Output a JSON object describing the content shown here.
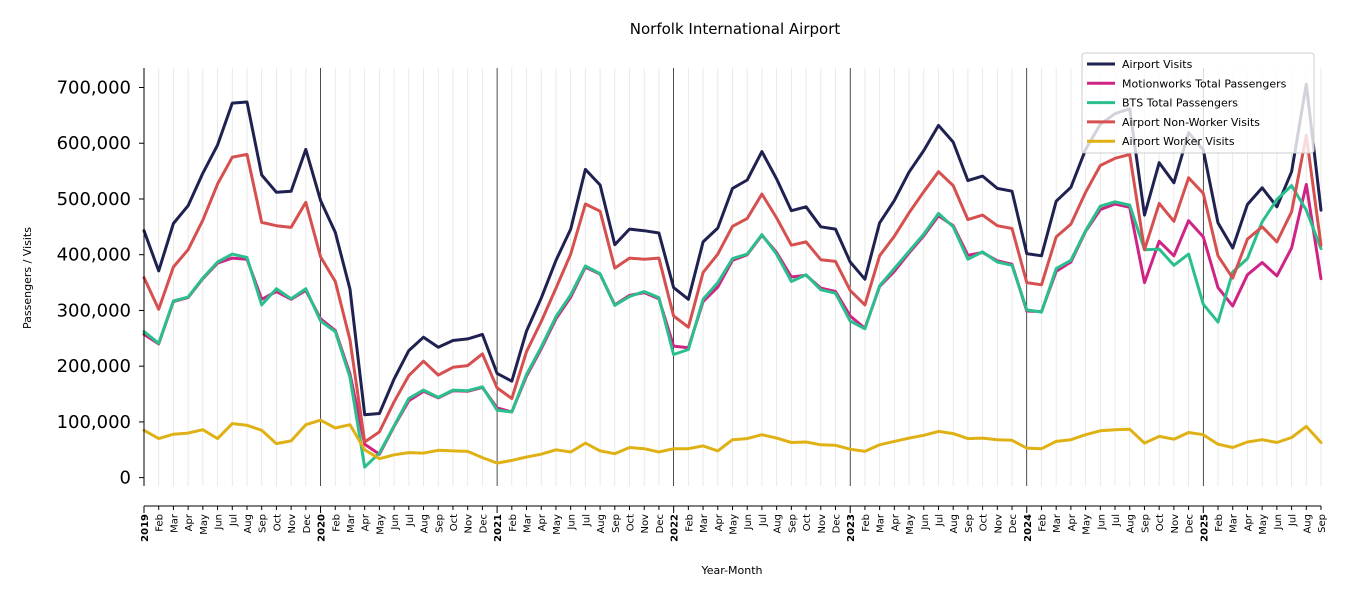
{
  "chart_data": {
    "type": "line",
    "title": "Norfolk International Airport",
    "xlabel": "Year-Month",
    "ylabel": "Passengers / Visits",
    "ylim": [
      -15000,
      735000
    ],
    "yticks": [
      0,
      100000,
      200000,
      300000,
      400000,
      500000,
      600000,
      700000
    ],
    "ytick_labels": [
      "0",
      "100,000",
      "200,000",
      "300,000",
      "400,000",
      "500,000",
      "600,000",
      "700,000"
    ],
    "grid": "vertical minor month lines",
    "legend_position": "top-right",
    "x_start": "2019-01",
    "x_end": "2025-09",
    "month_labels": [
      "Jan",
      "Feb",
      "Mar",
      "Apr",
      "May",
      "Jun",
      "Jul",
      "Aug",
      "Sep",
      "Oct",
      "Nov",
      "Dec"
    ],
    "year_labels": [
      "2019",
      "2020",
      "2021",
      "2022",
      "2023",
      "2024",
      "2025"
    ],
    "series": [
      {
        "name": "Airport Visits",
        "color": "#1f2151",
        "values": [
          443000,
          371000,
          456000,
          488000,
          546000,
          597000,
          672000,
          674000,
          543000,
          512000,
          514000,
          589000,
          497000,
          440000,
          338000,
          113000,
          115000,
          177000,
          228000,
          252000,
          234000,
          246000,
          249000,
          257000,
          187000,
          173000,
          263000,
          322000,
          390000,
          446000,
          553000,
          525000,
          418000,
          446000,
          443000,
          439000,
          341000,
          320000,
          423000,
          448000,
          519000,
          534000,
          585000,
          536000,
          479000,
          486000,
          450000,
          446000,
          387000,
          356000,
          457000,
          497000,
          548000,
          587000,
          632000,
          602000,
          533000,
          541000,
          519000,
          514000,
          402000,
          398000,
          496000,
          521000,
          589000,
          634000,
          653000,
          662000,
          471000,
          565000,
          529000,
          619000,
          588000,
          457000,
          412000,
          490000,
          520000,
          486000,
          549000,
          706000,
          480000
        ]
      },
      {
        "name": "Motionworks Total Passengers",
        "color": "#cf2385",
        "values": [
          257000,
          240000,
          316000,
          323000,
          357000,
          385000,
          394000,
          392000,
          320000,
          334000,
          320000,
          336000,
          285000,
          264000,
          186000,
          60000,
          42000,
          92000,
          138000,
          155000,
          143000,
          156000,
          155000,
          162000,
          125000,
          118000,
          182000,
          231000,
          285000,
          324000,
          378000,
          365000,
          310000,
          327000,
          332000,
          321000,
          236000,
          233000,
          316000,
          342000,
          390000,
          400000,
          435000,
          404000,
          360000,
          363000,
          340000,
          334000,
          290000,
          268000,
          343000,
          370000,
          403000,
          434000,
          470000,
          452000,
          399000,
          404000,
          389000,
          383000,
          299000,
          298000,
          370000,
          387000,
          442000,
          481000,
          491000,
          485000,
          350000,
          424000,
          398000,
          461000,
          432000,
          341000,
          308000,
          364000,
          386000,
          362000,
          412000,
          526000,
          357000
        ]
      },
      {
        "name": "BTS Total Passengers",
        "color": "#2bbf8e",
        "values": [
          262000,
          241000,
          317000,
          324000,
          358000,
          387000,
          401000,
          395000,
          310000,
          339000,
          321000,
          339000,
          281000,
          262000,
          180000,
          19000,
          44000,
          93000,
          142000,
          157000,
          144000,
          157000,
          156000,
          163000,
          121000,
          118000,
          185000,
          234000,
          289000,
          328000,
          380000,
          366000,
          309000,
          325000,
          334000,
          323000,
          221000,
          230000,
          320000,
          350000,
          393000,
          401000,
          436000,
          401000,
          352000,
          364000,
          337000,
          331000,
          281000,
          267000,
          344000,
          375000,
          406000,
          437000,
          474000,
          450000,
          392000,
          405000,
          387000,
          381000,
          301000,
          297000,
          375000,
          390000,
          443000,
          487000,
          495000,
          489000,
          409000,
          410000,
          381000,
          401000,
          311000,
          279000,
          369000,
          393000,
          459000,
          499000,
          524000,
          480000,
          411000
        ]
      },
      {
        "name": "Airport Non-Worker Visits",
        "color": "#d65050",
        "values": [
          359000,
          302000,
          378000,
          409000,
          462000,
          527000,
          575000,
          580000,
          458000,
          452000,
          449000,
          494000,
          396000,
          352000,
          247000,
          64000,
          82000,
          136000,
          183000,
          209000,
          184000,
          198000,
          201000,
          222000,
          161000,
          142000,
          226000,
          280000,
          340000,
          401000,
          491000,
          478000,
          376000,
          394000,
          392000,
          394000,
          290000,
          270000,
          368000,
          401000,
          451000,
          465000,
          509000,
          466000,
          417000,
          423000,
          391000,
          388000,
          336000,
          310000,
          398000,
          433000,
          475000,
          513000,
          549000,
          524000,
          463000,
          471000,
          452000,
          447000,
          350000,
          346000,
          432000,
          455000,
          512000,
          560000,
          573000,
          580000,
          409000,
          492000,
          460000,
          538000,
          510000,
          398000,
          358000,
          428000,
          450000,
          423000,
          477000,
          614000,
          417000
        ]
      },
      {
        "name": "Airport Worker Visits",
        "color": "#e0b115",
        "values": [
          85000,
          70000,
          78000,
          80000,
          86000,
          70000,
          97000,
          94000,
          85000,
          61000,
          66000,
          95000,
          103000,
          89000,
          95000,
          50000,
          34000,
          41000,
          45000,
          44000,
          49000,
          48000,
          47000,
          36000,
          26000,
          31000,
          37000,
          42000,
          50000,
          46000,
          62000,
          48000,
          43000,
          54000,
          52000,
          46000,
          52000,
          52000,
          57000,
          48000,
          68000,
          70000,
          77000,
          71000,
          63000,
          64000,
          59000,
          58000,
          51000,
          47000,
          59000,
          65000,
          71000,
          76000,
          83000,
          79000,
          70000,
          71000,
          68000,
          67000,
          53000,
          52000,
          65000,
          68000,
          77000,
          84000,
          86000,
          87000,
          62000,
          74000,
          69000,
          81000,
          77000,
          60000,
          54000,
          64000,
          68000,
          63000,
          72000,
          92000,
          63000
        ]
      }
    ]
  }
}
